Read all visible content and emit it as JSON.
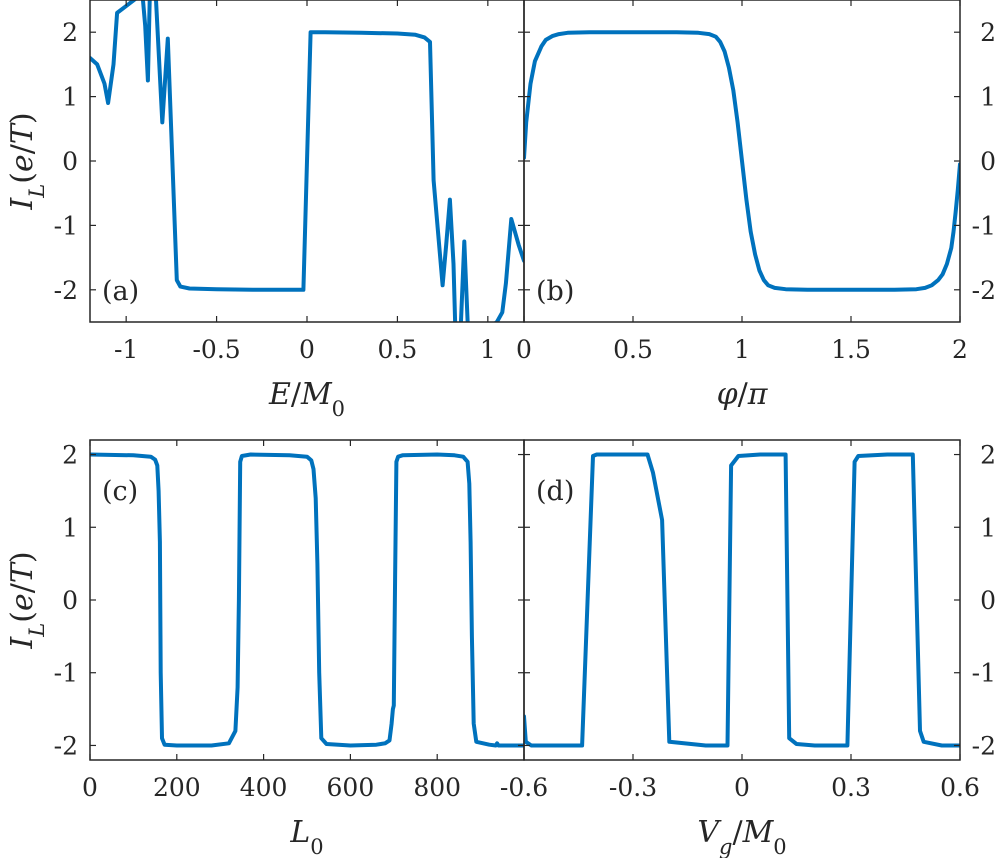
{
  "colors": {
    "line": "#0072bd",
    "axes": "#262626"
  },
  "chart_data": [
    {
      "id": "a",
      "type": "line",
      "panel_label": "(a)",
      "xlabel": [
        "E",
        "/",
        "M",
        "0"
      ],
      "ylabel": "I_L(e/T)",
      "xlim": [
        -1.2,
        1.2
      ],
      "ylim": [
        -2.5,
        2.5
      ],
      "xticks": [
        -1,
        -0.5,
        0,
        0.5,
        1
      ],
      "xticklabels": [
        "-1",
        "-0.5",
        "0",
        "0.5",
        "1"
      ],
      "yticks": [
        -2,
        -1,
        0,
        1,
        2
      ],
      "yticklabels": [
        "-2",
        "-1",
        "0",
        "1",
        "2"
      ],
      "ytick_side": "left",
      "grid": false,
      "series": [
        {
          "x": [
            -1.2,
            -1.16,
            -1.12,
            -1.1,
            -1.07,
            -1.05,
            -0.91,
            -0.895,
            -0.88,
            -0.87,
            -0.85,
            -0.835,
            -0.8,
            -0.77,
            -0.72,
            -0.7,
            -0.65,
            -0.5,
            -0.3,
            -0.1,
            -0.02,
            0.02,
            0.1,
            0.3,
            0.5,
            0.6,
            0.65,
            0.68,
            0.7,
            0.75,
            0.77,
            0.79,
            0.81,
            0.82,
            0.85,
            0.87,
            0.89,
            0.95,
            0.97,
            1.0,
            1.05,
            1.08,
            1.1,
            1.13,
            1.17,
            1.2
          ],
          "y": [
            1.6,
            1.5,
            1.2,
            0.9,
            1.5,
            2.3,
            2.6,
            2.1,
            1.25,
            2.5,
            2.6,
            2.5,
            0.6,
            1.9,
            -1.85,
            -1.95,
            -1.98,
            -1.99,
            -2.0,
            -2.0,
            -2.0,
            2.0,
            2.0,
            1.99,
            1.98,
            1.96,
            1.92,
            1.85,
            -0.3,
            -1.93,
            -1.3,
            -0.6,
            -1.6,
            -2.6,
            -2.6,
            -1.25,
            -2.6,
            -2.6,
            -2.6,
            -2.6,
            -2.5,
            -2.35,
            -1.9,
            -0.9,
            -1.3,
            -1.55
          ]
        }
      ]
    },
    {
      "id": "b",
      "type": "line",
      "panel_label": "(b)",
      "xlabel": [
        "φ",
        "/",
        "π",
        ""
      ],
      "ylabel": "",
      "xlim": [
        0,
        2
      ],
      "ylim": [
        -2.5,
        2.5
      ],
      "xticks": [
        0,
        0.5,
        1,
        1.5,
        2
      ],
      "xticklabels": [
        "0",
        "0.5",
        "1",
        "1.5",
        "2"
      ],
      "yticks": [
        -2,
        -1,
        0,
        1,
        2
      ],
      "yticklabels": [
        "-2",
        "-1",
        "0",
        "1",
        "2"
      ],
      "ytick_side": "right",
      "grid": false,
      "series": [
        {
          "x": [
            0,
            0.01,
            0.03,
            0.05,
            0.08,
            0.1,
            0.13,
            0.16,
            0.2,
            0.3,
            0.5,
            0.7,
            0.8,
            0.85,
            0.88,
            0.9,
            0.92,
            0.94,
            0.96,
            0.98,
            1.0,
            1.02,
            1.04,
            1.06,
            1.08,
            1.1,
            1.12,
            1.15,
            1.2,
            1.3,
            1.5,
            1.7,
            1.8,
            1.84,
            1.87,
            1.9,
            1.92,
            1.94,
            1.96,
            1.97,
            1.98,
            1.99,
            2.0
          ],
          "y": [
            0.05,
            0.6,
            1.2,
            1.55,
            1.78,
            1.88,
            1.94,
            1.97,
            1.99,
            2.0,
            2.0,
            2.0,
            1.99,
            1.97,
            1.93,
            1.85,
            1.7,
            1.45,
            1.1,
            0.6,
            0.0,
            -0.6,
            -1.1,
            -1.45,
            -1.7,
            -1.85,
            -1.93,
            -1.97,
            -1.99,
            -2.0,
            -2.0,
            -2.0,
            -1.99,
            -1.97,
            -1.93,
            -1.85,
            -1.76,
            -1.6,
            -1.35,
            -1.1,
            -0.8,
            -0.45,
            -0.05
          ]
        }
      ]
    },
    {
      "id": "c",
      "type": "line",
      "panel_label": "(c)",
      "xlabel": [
        "L",
        "",
        "",
        "0"
      ],
      "ylabel": "I_L(e/T)",
      "xlim": [
        0,
        1000
      ],
      "ylim": [
        -2.2,
        2.2
      ],
      "xticks": [
        0,
        200,
        400,
        600,
        800
      ],
      "xticklabels": [
        "0",
        "200",
        "400",
        "600",
        "800"
      ],
      "yticks": [
        -2,
        -1,
        0,
        1,
        2
      ],
      "yticklabels": [
        "-2",
        "-1",
        "0",
        "1",
        "2"
      ],
      "ytick_side": "left",
      "grid": false,
      "series": [
        {
          "x": [
            0,
            100,
            140,
            150,
            155,
            158,
            161,
            163,
            166,
            172,
            200,
            280,
            320,
            335,
            340,
            343,
            346,
            350,
            370,
            460,
            500,
            510,
            515,
            520,
            524,
            528,
            533,
            545,
            600,
            660,
            680,
            690,
            695,
            698,
            700,
            703,
            706,
            710,
            720,
            800,
            840,
            860,
            870,
            874,
            877,
            880,
            884,
            890,
            920,
            935,
            938,
            941,
            960,
            1000
          ],
          "y": [
            2.0,
            1.99,
            1.97,
            1.93,
            1.85,
            1.5,
            0.8,
            -1.0,
            -1.9,
            -1.99,
            -2.0,
            -2.0,
            -1.97,
            -1.8,
            -1.2,
            0.0,
            1.9,
            1.98,
            2.0,
            1.99,
            1.97,
            1.92,
            1.8,
            1.4,
            0.5,
            -1.0,
            -1.9,
            -1.98,
            -2.0,
            -1.99,
            -1.97,
            -1.93,
            -1.7,
            -1.5,
            -1.45,
            0.3,
            1.9,
            1.97,
            1.99,
            2.0,
            1.99,
            1.97,
            1.9,
            1.6,
            0.8,
            -0.5,
            -1.7,
            -1.95,
            -1.99,
            -2.0,
            -1.97,
            -2.0,
            -2.0,
            -2.0
          ]
        }
      ]
    },
    {
      "id": "d",
      "type": "line",
      "panel_label": "(d)",
      "xlabel": [
        "V",
        "g",
        "/M",
        "0"
      ],
      "ylabel": "",
      "xlim": [
        -0.6,
        0.6
      ],
      "ylim": [
        -2.2,
        2.2
      ],
      "xticks": [
        -0.6,
        -0.3,
        0,
        0.3,
        0.6
      ],
      "xticklabels": [
        "-0.6",
        "-0.3",
        "0",
        "0.3",
        "0.6"
      ],
      "yticks": [
        -2,
        -1,
        0,
        1,
        2
      ],
      "yticklabels": [
        "-2",
        "-1",
        "0",
        "1",
        "2"
      ],
      "ytick_side": "right",
      "grid": false,
      "series": [
        {
          "x": [
            -0.6,
            -0.595,
            -0.58,
            -0.5,
            -0.44,
            -0.41,
            -0.4,
            -0.3,
            -0.26,
            -0.245,
            -0.22,
            -0.2,
            -0.1,
            -0.04,
            -0.03,
            -0.01,
            0.05,
            0.1,
            0.12,
            0.13,
            0.15,
            0.2,
            0.29,
            0.31,
            0.32,
            0.4,
            0.47,
            0.49,
            0.5,
            0.55,
            0.6
          ],
          "y": [
            -1.6,
            -1.95,
            -2.0,
            -2.0,
            -2.0,
            1.98,
            2.0,
            2.0,
            2.0,
            1.75,
            1.1,
            -1.95,
            -2.0,
            -2.0,
            1.85,
            1.98,
            2.0,
            2.0,
            2.0,
            -1.9,
            -1.98,
            -2.0,
            -2.0,
            1.9,
            1.98,
            2.0,
            2.0,
            -1.8,
            -1.95,
            -2.0,
            -2.0
          ]
        }
      ]
    }
  ]
}
